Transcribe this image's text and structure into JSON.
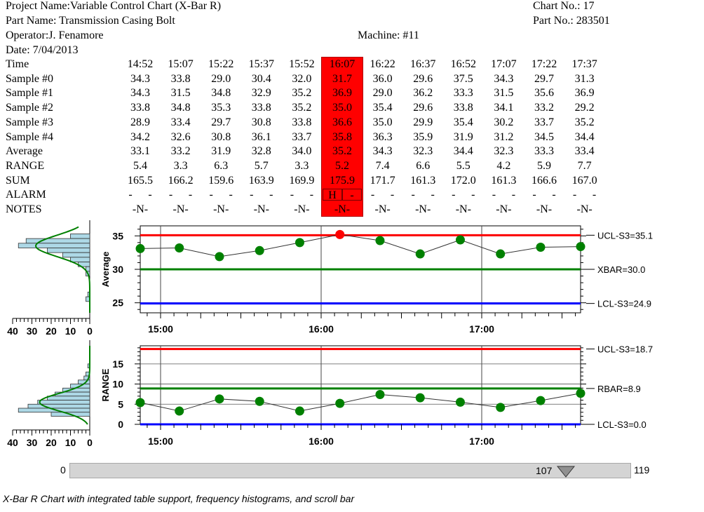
{
  "header": {
    "project": "Project Name:Variable Control Chart (X-Bar R)",
    "part_name": "Part Name: Transmission Casing Bolt",
    "operator": "Operator:J. Fenamore",
    "date": "Date: 7/04/2013",
    "chart_no": "Chart No.: 17",
    "part_no": "Part No.: 283501",
    "machine": "Machine: #11"
  },
  "table": {
    "row_labels": [
      "Time",
      "Sample #0",
      "Sample #1",
      "Sample #2",
      "Sample #3",
      "Sample #4",
      "Average",
      "RANGE",
      "SUM",
      "ALARM",
      "NOTES"
    ],
    "times": [
      "14:52",
      "15:07",
      "15:22",
      "15:37",
      "15:52",
      "16:07",
      "16:22",
      "16:37",
      "16:52",
      "17:07",
      "17:22",
      "17:37"
    ],
    "samples": [
      [
        "34.3",
        "33.8",
        "29.0",
        "30.4",
        "32.0",
        "31.7",
        "36.0",
        "29.6",
        "37.5",
        "34.3",
        "29.7",
        "31.3"
      ],
      [
        "34.3",
        "31.5",
        "34.8",
        "32.9",
        "35.2",
        "36.9",
        "29.0",
        "36.2",
        "33.3",
        "31.5",
        "35.6",
        "36.9"
      ],
      [
        "33.8",
        "34.8",
        "35.3",
        "33.8",
        "35.2",
        "35.0",
        "35.4",
        "29.6",
        "33.8",
        "34.1",
        "33.2",
        "29.2"
      ],
      [
        "28.9",
        "33.4",
        "29.7",
        "30.8",
        "33.8",
        "36.6",
        "35.0",
        "29.9",
        "35.4",
        "30.2",
        "33.7",
        "35.2"
      ],
      [
        "34.2",
        "32.6",
        "30.8",
        "36.1",
        "33.7",
        "35.8",
        "36.3",
        "35.9",
        "31.9",
        "31.2",
        "34.5",
        "34.4"
      ]
    ],
    "average": [
      "33.1",
      "33.2",
      "31.9",
      "32.8",
      "34.0",
      "35.2",
      "34.3",
      "32.3",
      "34.4",
      "32.3",
      "33.3",
      "33.4"
    ],
    "range": [
      "5.4",
      "3.3",
      "6.3",
      "5.7",
      "3.3",
      "5.2",
      "7.4",
      "6.6",
      "5.5",
      "4.2",
      "5.9",
      "7.7"
    ],
    "sum": [
      "165.5",
      "166.2",
      "159.6",
      "163.9",
      "169.9",
      "175.9",
      "171.7",
      "161.3",
      "172.0",
      "161.3",
      "166.6",
      "167.0"
    ],
    "alarm": [
      [
        "-",
        "-"
      ],
      [
        "-",
        "-"
      ],
      [
        "-",
        "-"
      ],
      [
        "-",
        "-"
      ],
      [
        "-",
        "-"
      ],
      [
        "H",
        "-"
      ],
      [
        "-",
        "-"
      ],
      [
        "-",
        "-"
      ],
      [
        "-",
        "-"
      ],
      [
        "-",
        "-"
      ],
      [
        "-",
        "-"
      ],
      [
        "-",
        "-"
      ]
    ],
    "notes": [
      "-N-",
      "-N-",
      "-N-",
      "-N-",
      "-N-",
      "-N-",
      "-N-",
      "-N-",
      "-N-",
      "-N-",
      "-N-",
      "-N-"
    ],
    "highlight_column": 5,
    "highlight_color": "#ff0000"
  },
  "chart_data": [
    {
      "type": "line",
      "ylabel": "Average",
      "ylim": [
        23.5,
        36.5
      ],
      "yticks": [
        "25",
        "30",
        "35"
      ],
      "x_time_labels": [
        "15:00",
        "16:00",
        "17:00"
      ],
      "values": [
        33.1,
        33.2,
        31.9,
        32.8,
        34.0,
        35.2,
        34.3,
        32.3,
        34.4,
        32.3,
        33.3,
        33.4
      ],
      "alarm_point": 5,
      "limits": [
        {
          "label": "UCL-S3=35.1",
          "value": 35.1,
          "color": "#ff0000"
        },
        {
          "label": "XBAR=30.0",
          "value": 30.0,
          "color": "#008000"
        },
        {
          "label": "LCL-S3=24.9",
          "value": 24.9,
          "color": "#0000ff"
        }
      ],
      "histogram_axis_labels": [
        "40",
        "30",
        "20",
        "10",
        "0"
      ]
    },
    {
      "type": "line",
      "ylabel": "RANGE",
      "ylim": [
        0,
        19.5
      ],
      "yticks": [
        "0",
        "5",
        "10",
        "15"
      ],
      "x_time_labels": [
        "15:00",
        "16:00",
        "17:00"
      ],
      "values": [
        5.4,
        3.3,
        6.3,
        5.7,
        3.3,
        5.2,
        7.4,
        6.6,
        5.5,
        4.2,
        5.9,
        7.7
      ],
      "limits": [
        {
          "label": "UCL-S3=18.7",
          "value": 18.7,
          "color": "#ff0000"
        },
        {
          "label": "RBAR=8.9",
          "value": 8.9,
          "color": "#008000"
        },
        {
          "label": "LCL-S3=0.0",
          "value": 0.0,
          "color": "#0000ff"
        }
      ],
      "histogram_axis_labels": [
        "40",
        "30",
        "20",
        "10",
        "0"
      ]
    }
  ],
  "colors": {
    "point": "#008000",
    "alarm_point": "#ff0000",
    "histogram": "#add8e6",
    "curve": "#008000"
  },
  "scrollbar": {
    "min": "0",
    "max": "119",
    "value": "107"
  },
  "caption": "X-Bar R Chart with integrated table support, frequency histograms, and scroll bar"
}
